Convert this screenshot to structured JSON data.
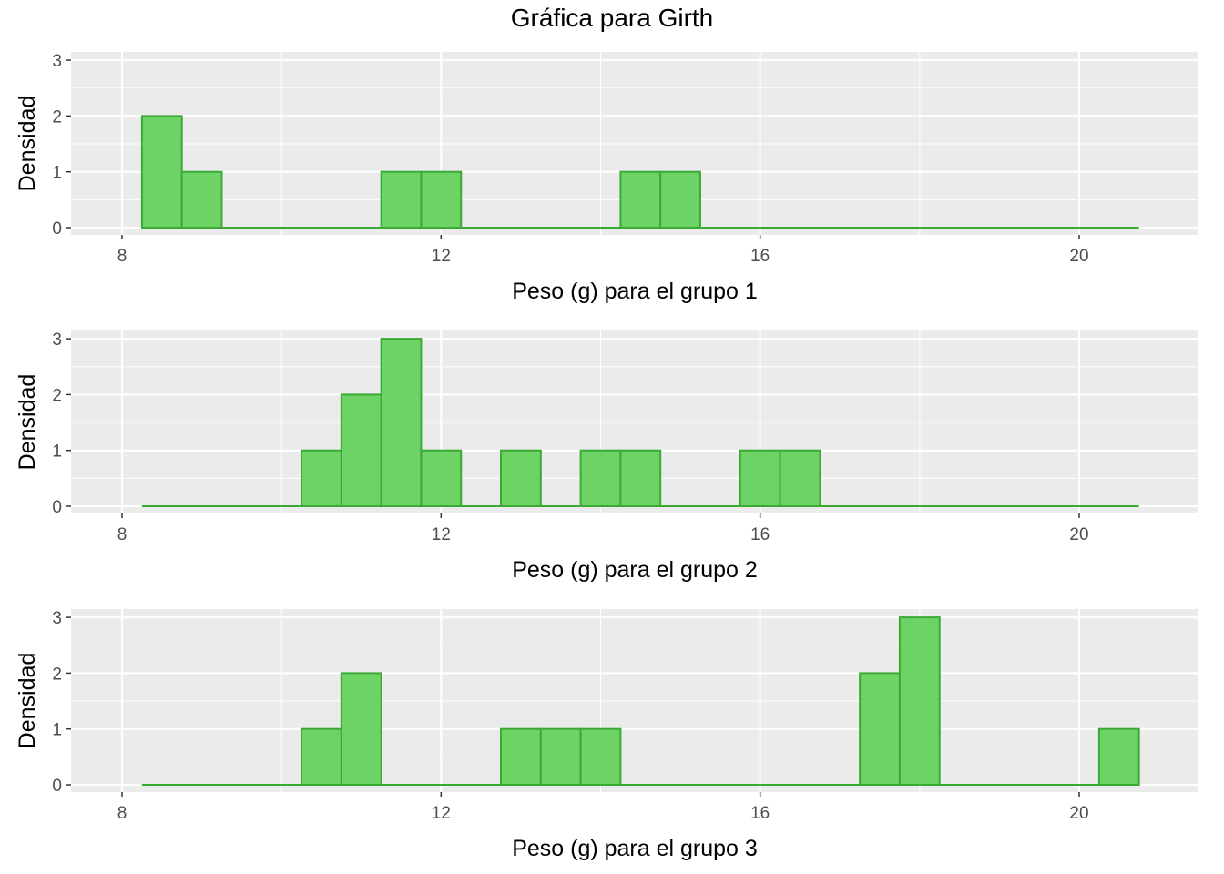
{
  "title": "Gráfica para Girth",
  "chart_data": [
    {
      "type": "bar",
      "xlabel": "Peso (g) para el grupo 1",
      "ylabel": "Densidad",
      "xlim": [
        7.75,
        20.75
      ],
      "ylim": [
        0,
        3
      ],
      "x_ticks": [
        "8",
        "12",
        "16",
        "20"
      ],
      "y_ticks": [
        "0",
        "1",
        "2",
        "3"
      ],
      "bin_width": 0.5,
      "bin_start": 8.25,
      "values": [
        2,
        1,
        0,
        0,
        0,
        0,
        1,
        1,
        0,
        0,
        0,
        0,
        1,
        1,
        0,
        0,
        0,
        0,
        0,
        0,
        0,
        0,
        0,
        0,
        0
      ],
      "fill": "#6dd365",
      "stroke": "#3aaa35",
      "grid": true
    },
    {
      "type": "bar",
      "xlabel": "Peso (g) para el grupo 2",
      "ylabel": "Densidad",
      "xlim": [
        7.75,
        20.75
      ],
      "ylim": [
        0,
        3
      ],
      "x_ticks": [
        "8",
        "12",
        "16",
        "20"
      ],
      "y_ticks": [
        "0",
        "1",
        "2",
        "3"
      ],
      "bin_width": 0.5,
      "bin_start": 8.25,
      "values": [
        0,
        0,
        0,
        0,
        1,
        2,
        3,
        1,
        0,
        1,
        0,
        1,
        1,
        0,
        0,
        1,
        1,
        0,
        0,
        0,
        0,
        0,
        0,
        0,
        0
      ],
      "fill": "#6dd365",
      "stroke": "#3aaa35",
      "grid": true
    },
    {
      "type": "bar",
      "xlabel": "Peso (g) para el grupo 3",
      "ylabel": "Densidad",
      "xlim": [
        7.75,
        20.75
      ],
      "ylim": [
        0,
        3
      ],
      "x_ticks": [
        "8",
        "12",
        "16",
        "20"
      ],
      "y_ticks": [
        "0",
        "1",
        "2",
        "3"
      ],
      "bin_width": 0.5,
      "bin_start": 8.25,
      "values": [
        0,
        0,
        0,
        0,
        1,
        2,
        0,
        0,
        0,
        1,
        1,
        1,
        0,
        0,
        0,
        0,
        0,
        0,
        2,
        3,
        0,
        0,
        0,
        0,
        1
      ],
      "fill": "#6dd365",
      "stroke": "#3aaa35",
      "grid": true
    }
  ]
}
